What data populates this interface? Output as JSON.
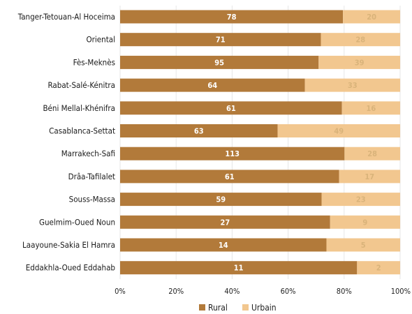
{
  "chart_data": {
    "type": "bar",
    "orientation": "horizontal",
    "stacked": true,
    "normalized": true,
    "categories": [
      "Tanger-Tetouan-Al Hoceima",
      "Oriental",
      "Fès-Meknès",
      "Rabat-Salé-Kénitra",
      "Béni Mellal-Khénifra",
      "Casablanca-Settat",
      "Marrakech-Safi",
      "Drâa-Tafilalet",
      "Souss-Massa",
      "Guelmim-Oued Noun",
      "Laayoune-Sakia El Hamra",
      "Eddakhla-Oued Eddahab"
    ],
    "series": [
      {
        "name": "Rural",
        "values": [
          78,
          71,
          95,
          64,
          61,
          63,
          113,
          61,
          59,
          27,
          14,
          11
        ],
        "color": "#b27a3a"
      },
      {
        "name": "Urbain",
        "values": [
          20,
          28,
          39,
          33,
          16,
          49,
          28,
          17,
          23,
          9,
          5,
          2
        ],
        "color": "#f2c78f"
      }
    ],
    "xticks": [
      "0%",
      "20%",
      "40%",
      "60%",
      "80%",
      "100%"
    ],
    "xlim": [
      0,
      100
    ],
    "legend_position": "bottom"
  }
}
